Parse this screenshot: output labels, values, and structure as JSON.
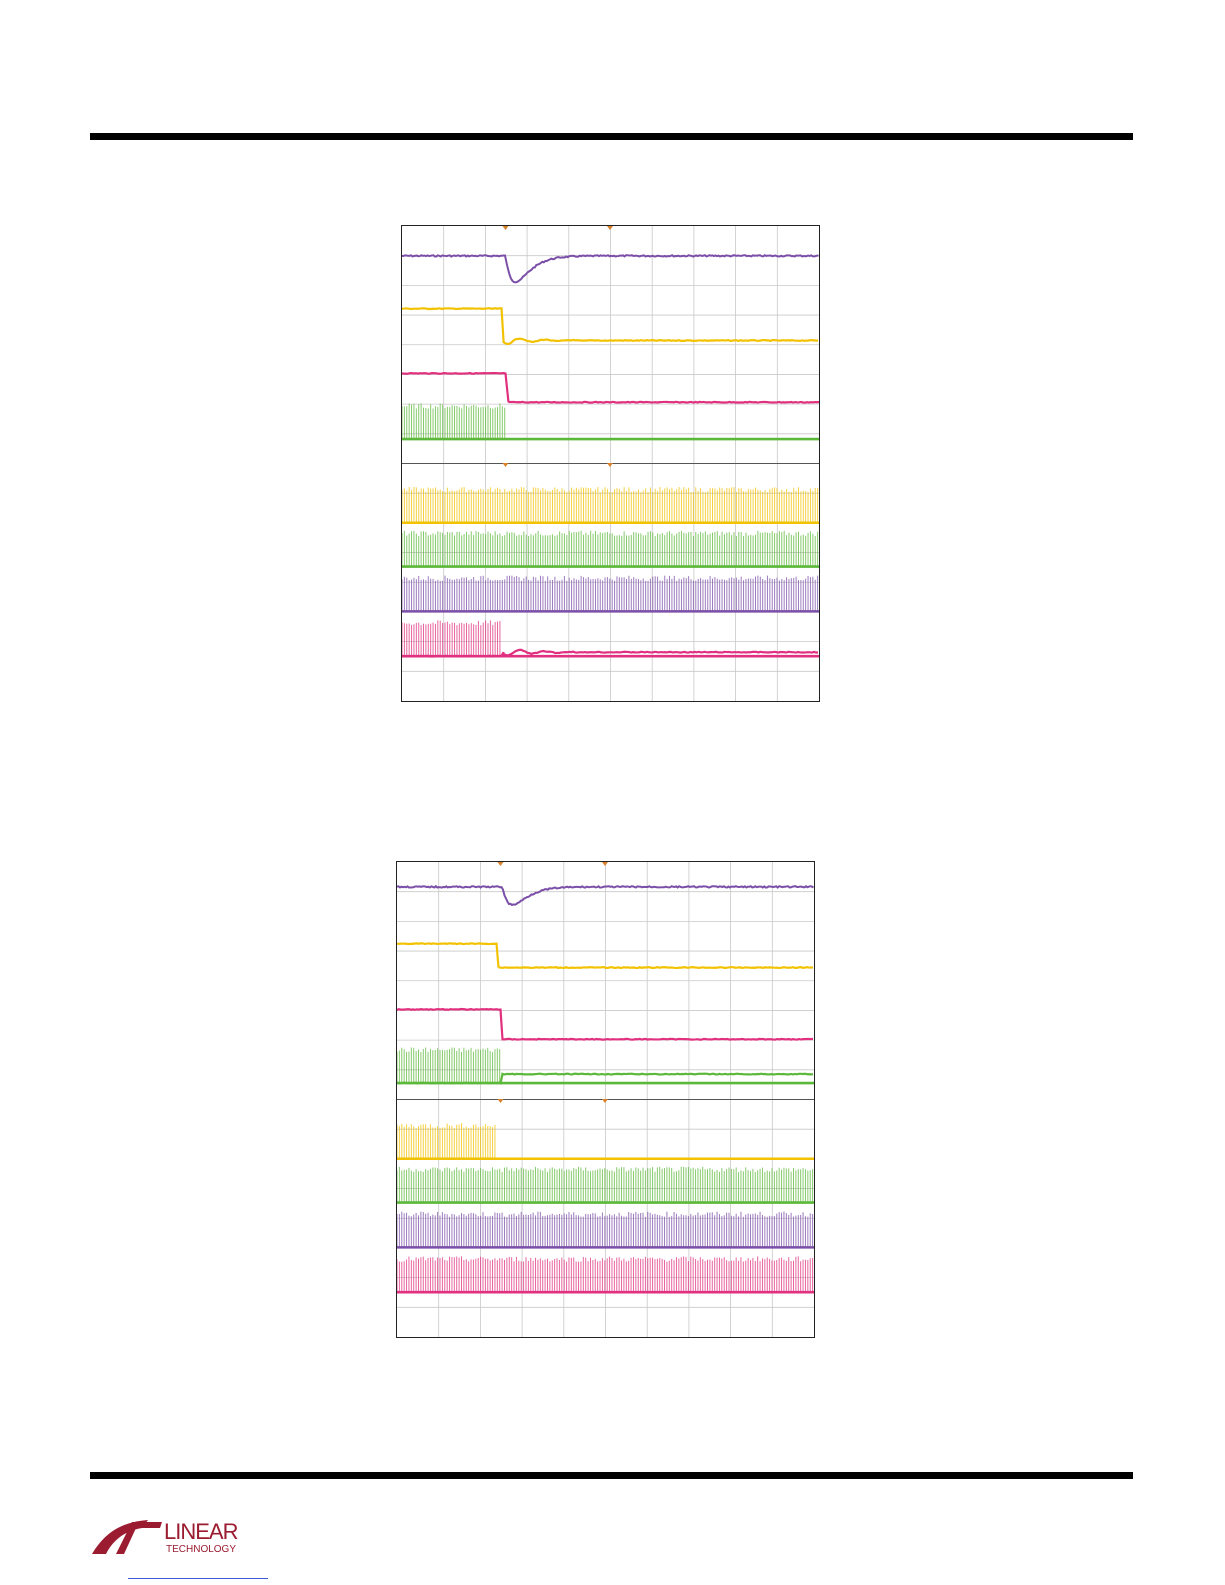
{
  "page": {
    "brand": {
      "logo_text_top": "LINEAR",
      "logo_text_bottom": "TECHNOLOGY",
      "color": "#9b1b30"
    }
  },
  "scopes": [
    {
      "id": "scope-1",
      "traces_note": "4 channels top, 4 channels bottom, trigger step near 2.5 divisions",
      "colors": {
        "purple": "#7b4fa8",
        "yellow": "#f2c200",
        "pink": "#e0307f",
        "green": "#5cb83a"
      }
    },
    {
      "id": "scope-2",
      "colors": {
        "purple": "#7b4fa8",
        "yellow": "#f2c200",
        "pink": "#e0307f",
        "green": "#5cb83a"
      }
    }
  ]
}
